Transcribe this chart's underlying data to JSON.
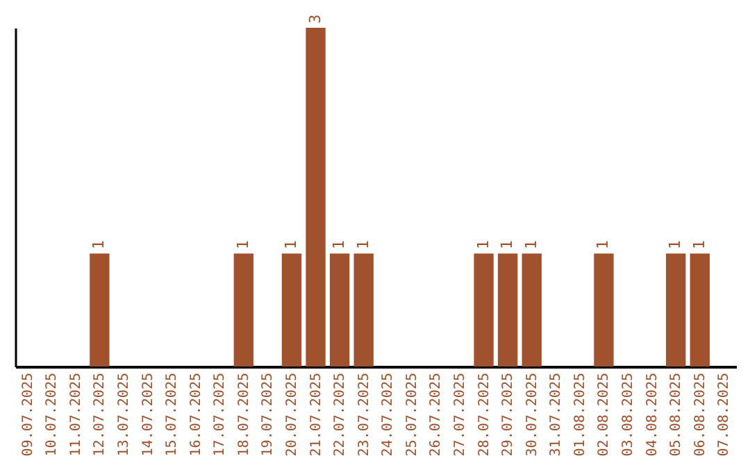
{
  "chart_data": {
    "type": "bar",
    "categories": [
      "09.07.2025",
      "10.07.2025",
      "11.07.2025",
      "12.07.2025",
      "13.07.2025",
      "14.07.2025",
      "15.07.2025",
      "16.07.2025",
      "17.07.2025",
      "18.07.2025",
      "19.07.2025",
      "20.07.2025",
      "21.07.2025",
      "22.07.2025",
      "23.07.2025",
      "24.07.2025",
      "25.07.2025",
      "26.07.2025",
      "27.07.2025",
      "28.07.2025",
      "29.07.2025",
      "30.07.2025",
      "31.07.2025",
      "01.08.2025",
      "02.08.2025",
      "03.08.2025",
      "04.08.2025",
      "05.08.2025",
      "06.08.2025",
      "07.08.2025"
    ],
    "values": [
      0,
      0,
      0,
      1,
      0,
      0,
      0,
      0,
      0,
      1,
      0,
      1,
      3,
      1,
      1,
      0,
      0,
      0,
      0,
      1,
      1,
      1,
      0,
      0,
      1,
      0,
      0,
      1,
      1,
      0
    ],
    "value_labels": [
      null,
      null,
      null,
      "1",
      null,
      null,
      null,
      null,
      null,
      "1",
      null,
      "1",
      "3",
      "1",
      "1",
      null,
      null,
      null,
      null,
      "1",
      "1",
      "1",
      null,
      null,
      "1",
      null,
      null,
      "1",
      "1",
      null
    ],
    "color": "#a0522d",
    "ylim": [
      0,
      3
    ],
    "tick_labels": "x"
  }
}
